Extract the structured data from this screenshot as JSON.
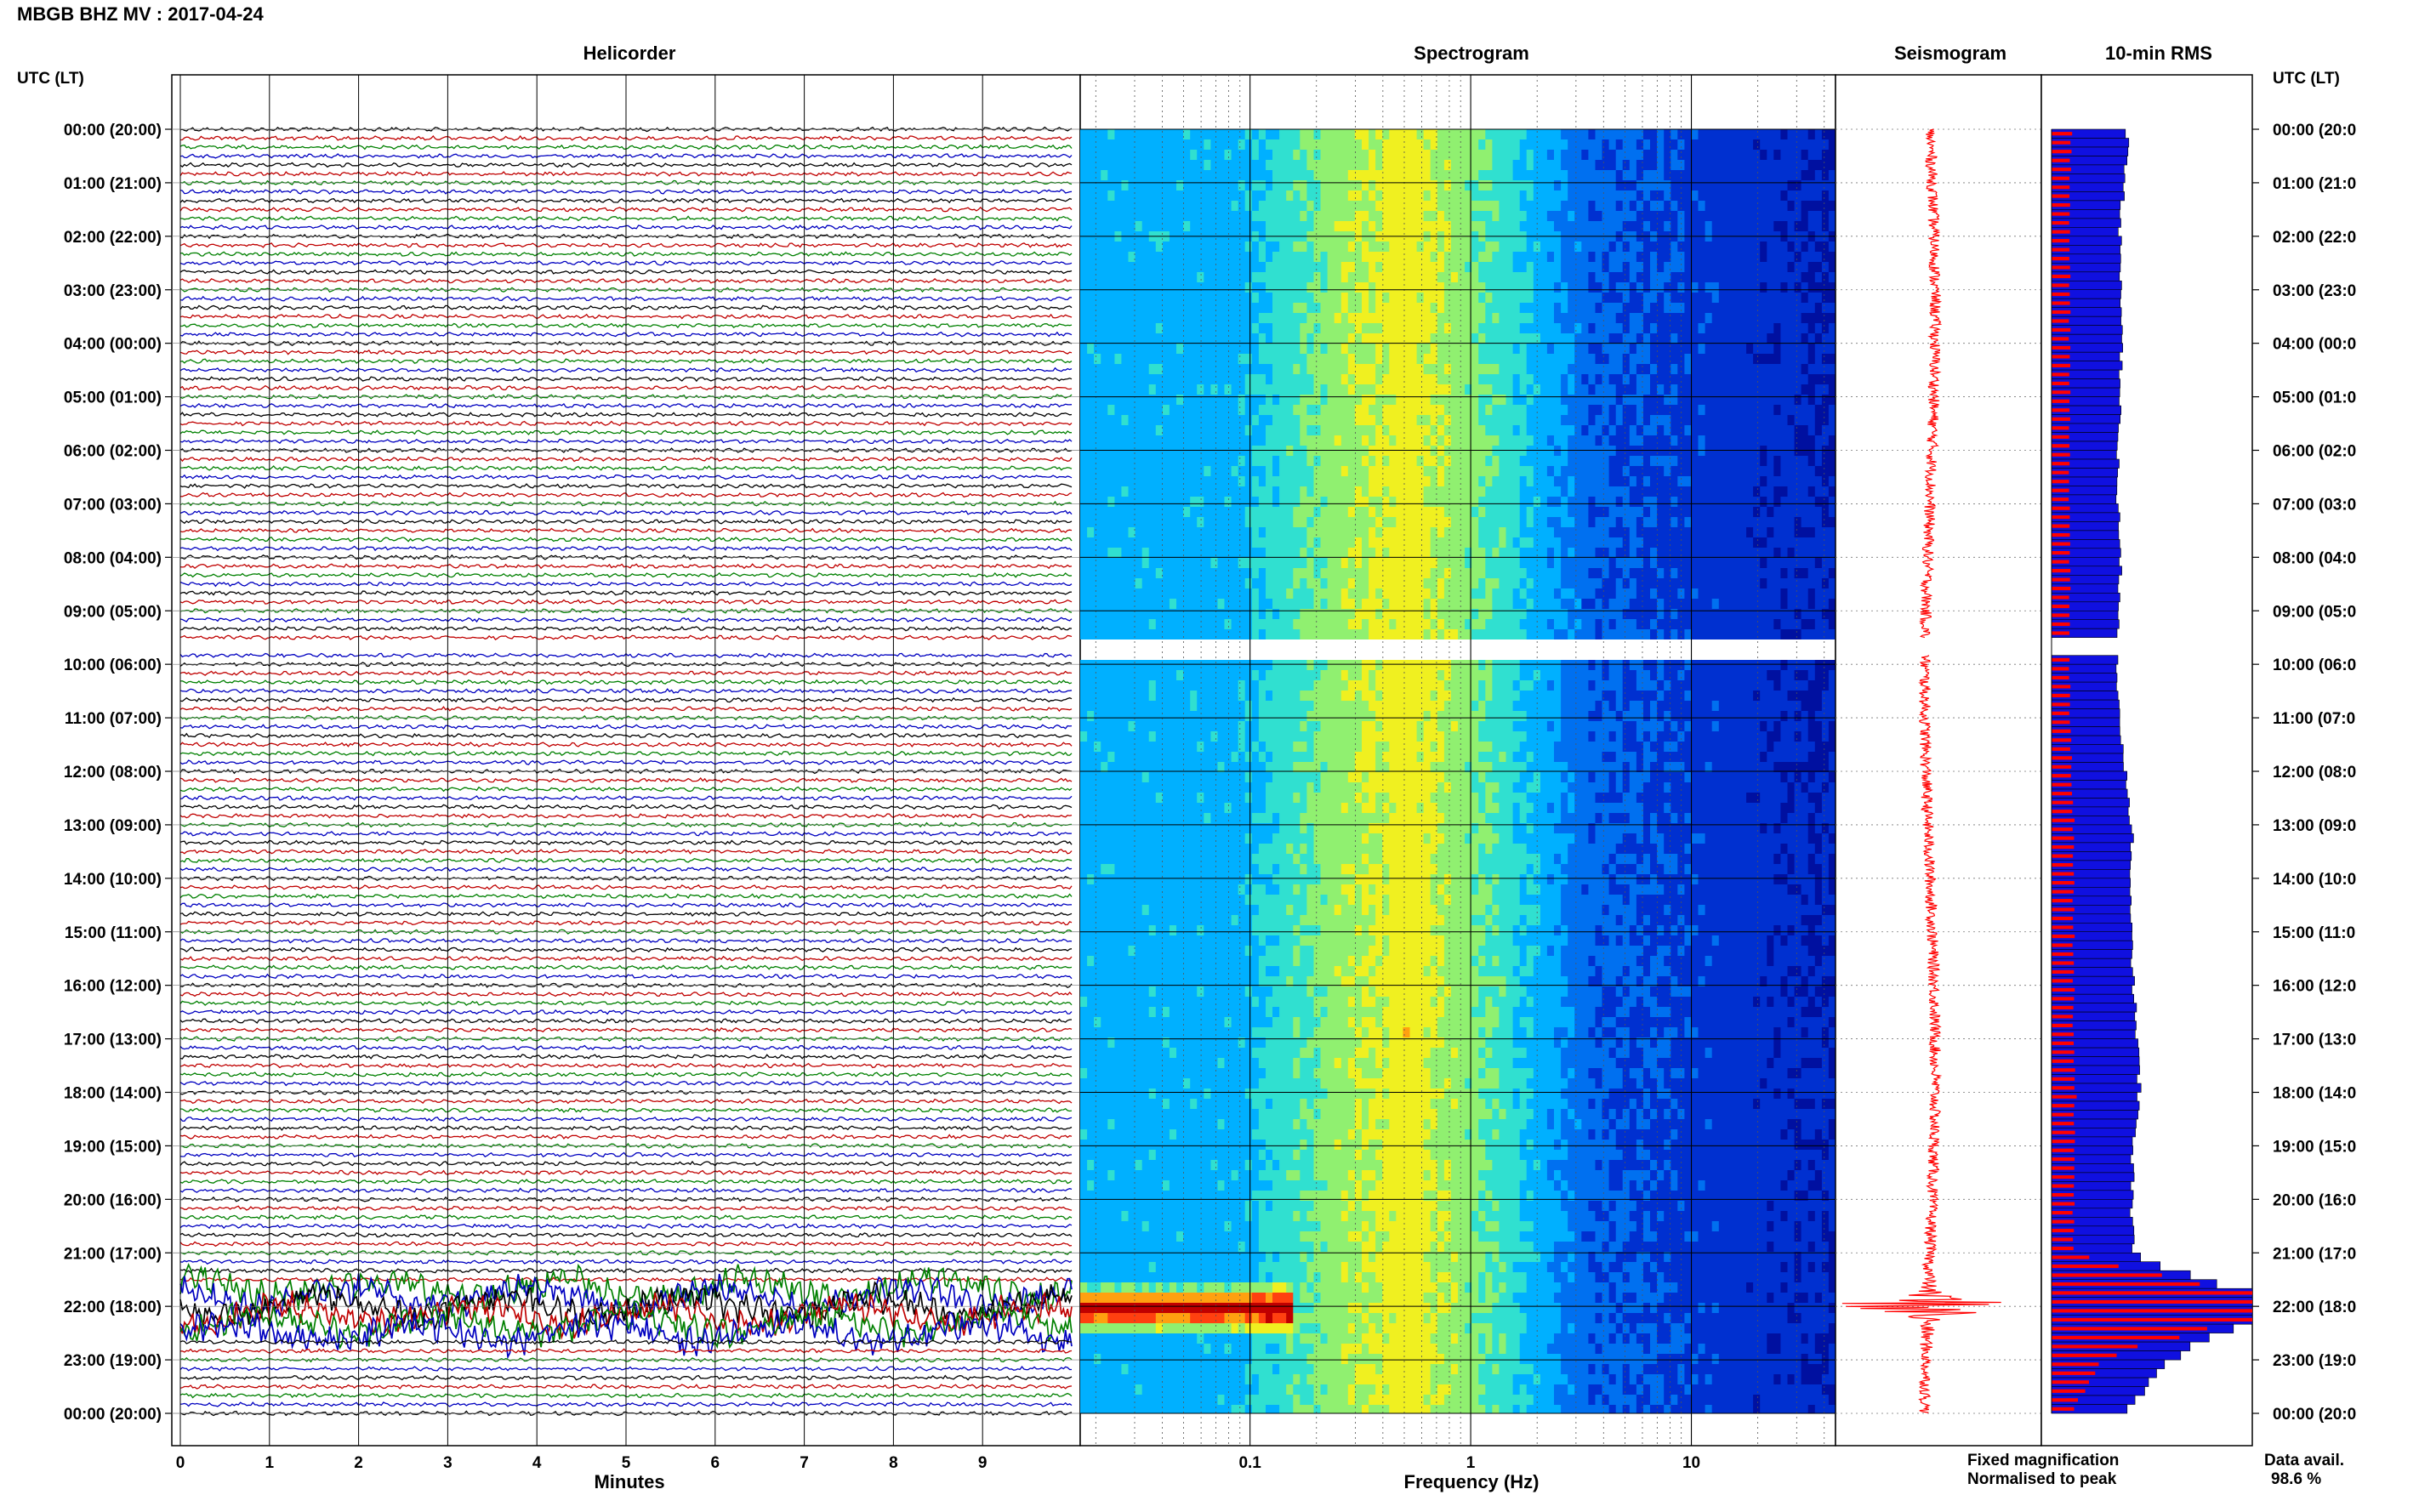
{
  "title": "MBGB BHZ MV : 2017-04-24",
  "timezone_label": "UTC (LT)",
  "panels": {
    "helicorder": "Helicorder",
    "spectrogram": "Spectrogram",
    "seismogram": "Seismogram",
    "rms": "10-min RMS"
  },
  "legend": {
    "fixed": "Fixed magnification",
    "fixed_color": "#1010e0",
    "normalised": "Normalised to peak",
    "normalised_color": "#ff0000"
  },
  "data_availability": {
    "label": "Data avail.",
    "value": "98.6 %"
  },
  "chart_data": [
    {
      "type": "helicorder",
      "xlabel": "Minutes",
      "xticks": [
        "0",
        "1",
        "2",
        "3",
        "4",
        "5",
        "6",
        "7",
        "8",
        "9"
      ],
      "xlim": [
        0,
        10
      ],
      "trace_colors": [
        "#000000",
        "#c00000",
        "#008000",
        "#0000c0"
      ],
      "traces_per_hour": 6,
      "gap_hours": [
        9.5,
        9.833
      ],
      "event_window_utc": [
        21.6,
        22.6
      ],
      "hour_labels_left": [
        "00:00 (20:00)",
        "01:00 (21:00)",
        "02:00 (22:00)",
        "03:00 (23:00)",
        "04:00 (00:00)",
        "05:00 (01:00)",
        "06:00 (02:00)",
        "07:00 (03:00)",
        "08:00 (04:00)",
        "09:00 (05:00)",
        "10:00 (06:00)",
        "11:00 (07:00)",
        "12:00 (08:00)",
        "13:00 (09:00)",
        "14:00 (10:00)",
        "15:00 (11:00)",
        "16:00 (12:00)",
        "17:00 (13:00)",
        "18:00 (14:00)",
        "19:00 (15:00)",
        "20:00 (16:00)",
        "21:00 (17:00)",
        "22:00 (18:00)",
        "23:00 (19:00)",
        "00:00 (20:00)"
      ],
      "hour_labels_right": [
        "00:00 (20:0",
        "01:00 (21:0",
        "02:00 (22:0",
        "03:00 (23:0",
        "04:00 (00:0",
        "05:00 (01:0",
        "06:00 (02:0",
        "07:00 (03:0",
        "08:00 (04:0",
        "09:00 (05:0",
        "10:00 (06:0",
        "11:00 (07:0",
        "12:00 (08:0",
        "13:00 (09:0",
        "14:00 (10:0",
        "15:00 (11:0",
        "16:00 (12:0",
        "17:00 (13:0",
        "18:00 (14:0",
        "19:00 (15:0",
        "20:00 (16:0",
        "21:00 (17:0",
        "22:00 (18:0",
        "23:00 (19:0",
        "00:00 (20:0"
      ]
    },
    {
      "type": "heatmap",
      "xlabel": "Frequency (Hz)",
      "xscale": "log",
      "xlim": [
        0.017,
        45
      ],
      "xticks": [
        0.1,
        1,
        10
      ],
      "xtick_labels": [
        "0.1",
        "1",
        "10"
      ],
      "colormap": [
        "#0010a0",
        "#0030d0",
        "#0070f0",
        "#00b0ff",
        "#30e0d0",
        "#90f070",
        "#f0f020",
        "#ffa010",
        "#ff4010",
        "#c00000"
      ]
    },
    {
      "type": "line",
      "name": "seismogram",
      "color": "#ff0000",
      "baseline_amplitude": 0.06,
      "peak_amplitude": 1.0,
      "peak_time_utc": 22.0
    },
    {
      "type": "bar",
      "orientation": "horizontal",
      "bin_minutes": 10,
      "rms_fixed_hourly": [
        0.38,
        0.36,
        0.34,
        0.35,
        0.35,
        0.34,
        0.33,
        0.33,
        0.34,
        0.34,
        0.33,
        0.33,
        0.37,
        0.4,
        0.4,
        0.4,
        0.41,
        0.42,
        0.44,
        0.4,
        0.4,
        0.4,
        1.0,
        0.6,
        0.35
      ],
      "rms_normalised_hourly": [
        0.1,
        0.09,
        0.09,
        0.09,
        0.09,
        0.09,
        0.09,
        0.09,
        0.09,
        0.09,
        0.09,
        0.09,
        0.1,
        0.11,
        0.11,
        0.11,
        0.11,
        0.11,
        0.12,
        0.11,
        0.11,
        0.11,
        1.0,
        0.25,
        0.1
      ],
      "peak_bin_utc": 22.0
    }
  ]
}
